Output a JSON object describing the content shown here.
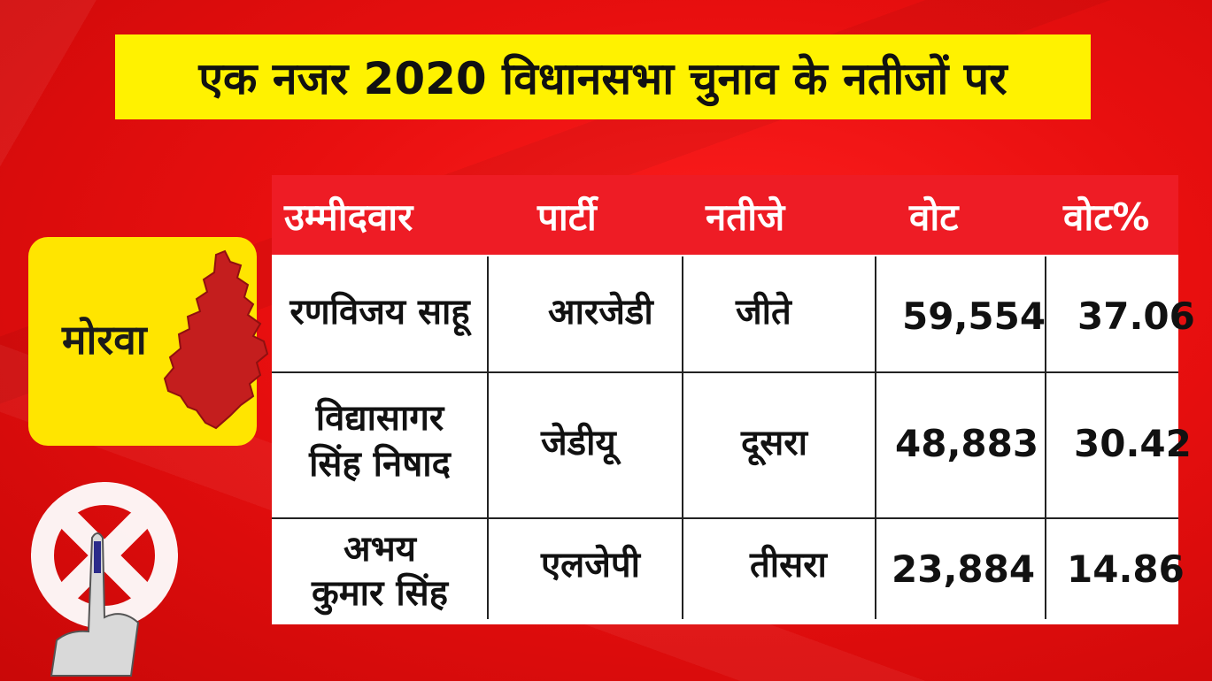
{
  "title": "एक नजर 2020 विधानसभा चुनाव के नतीजों पर",
  "region": {
    "name": "मोरवा",
    "map_icon": "constituency-map-icon",
    "map_color": "#c41e1e"
  },
  "emblem_icon": "ballot-swastik-inked-finger-icon",
  "colors": {
    "background": "#e80f0f",
    "banner": "#fff200",
    "card": "#ffe500",
    "header": "#ee1c25"
  },
  "table": {
    "headers": [
      "उम्मीदवार",
      "पार्टी",
      "नतीजे",
      "वोट",
      "वोट%"
    ],
    "rows": [
      {
        "candidate": [
          "रणविजय साहू"
        ],
        "party": "आरजेडी",
        "result": "जीते",
        "votes": "59,554",
        "vote_pct": "37.06"
      },
      {
        "candidate": [
          "विद्यासागर",
          "सिंह निषाद"
        ],
        "party": "जेडीयू",
        "result": "दूसरा",
        "votes": "48,883",
        "vote_pct": "30.42"
      },
      {
        "candidate": [
          "अभय",
          "कुमार सिंह"
        ],
        "party": "एलजेपी",
        "result": "तीसरा",
        "votes": "23,884",
        "vote_pct": "14.86"
      }
    ]
  }
}
